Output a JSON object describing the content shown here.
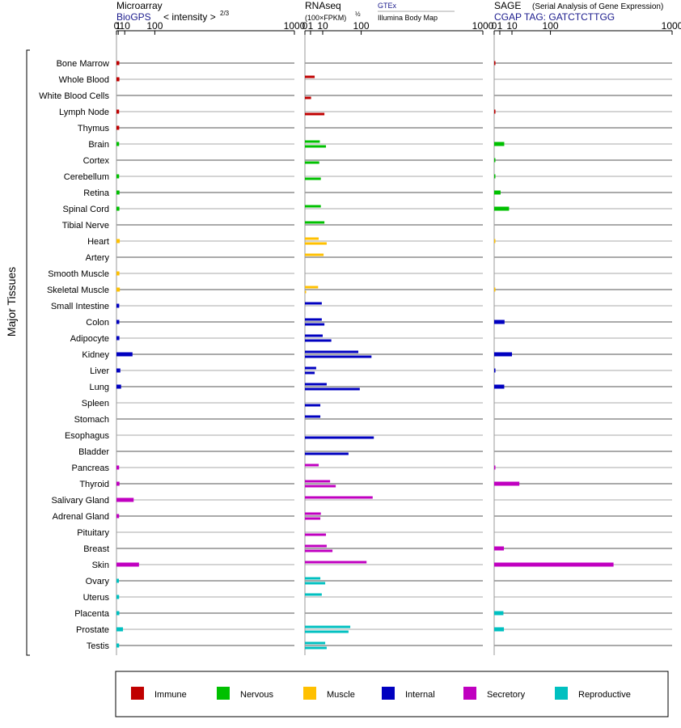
{
  "chart_data": {
    "type": "bar",
    "ylabel": "Major Tissues",
    "panels": {
      "microarray": {
        "title": "Microarray",
        "source": "BioGPS",
        "unit_prefix": "< intensity >",
        "unit_exp": "2/3",
        "ticks": [
          0,
          1,
          10,
          100,
          1000
        ],
        "tick_labels": [
          "0",
          "1",
          "10",
          "100",
          "1000"
        ]
      },
      "rnaseq": {
        "title": "RNAseq",
        "unit_prefix": "(100×FPKM)",
        "unit_exp": "½",
        "source_top": "GTEx",
        "source_bottom": "Illumina Body Map",
        "ticks": [
          0,
          1,
          10,
          100,
          1000
        ],
        "tick_labels": [
          "0",
          "1",
          "10",
          "100",
          "1000"
        ]
      },
      "sage": {
        "title": "SAGE",
        "subtitle": "(Serial Analysis of Gene Expression)",
        "tag": "CGAP TAG: GATCTCTTGG",
        "ticks": [
          0,
          1,
          10,
          100,
          1000
        ],
        "tick_labels": [
          "0",
          "1",
          "10",
          "100",
          "1000"
        ]
      }
    },
    "legend": [
      {
        "name": "Immune",
        "color": "#c00000"
      },
      {
        "name": "Nervous",
        "color": "#00c000"
      },
      {
        "name": "Muscle",
        "color": "#ffc000"
      },
      {
        "name": "Internal",
        "color": "#0000c0"
      },
      {
        "name": "Secretory",
        "color": "#c000c0"
      },
      {
        "name": "Reproductive",
        "color": "#00c0c0"
      }
    ],
    "tissues": [
      {
        "name": "Bone Marrow",
        "group": "Immune",
        "microarray": 2.0,
        "gtex": null,
        "ibm": null,
        "sage": 0.05
      },
      {
        "name": "Whole Blood",
        "group": "Immune",
        "microarray": 2.1,
        "gtex": 3.0,
        "ibm": null,
        "sage": null
      },
      {
        "name": "White Blood Cells",
        "group": "Immune",
        "microarray": null,
        "gtex": null,
        "ibm": 1.2,
        "sage": null
      },
      {
        "name": "Lymph Node",
        "group": "Immune",
        "microarray": 1.8,
        "gtex": null,
        "ibm": 12,
        "sage": 0.05
      },
      {
        "name": "Thymus",
        "group": "Immune",
        "microarray": 1.9,
        "gtex": null,
        "ibm": null,
        "sage": null
      },
      {
        "name": "Brain",
        "group": "Nervous",
        "microarray": 1.8,
        "gtex": 7,
        "ibm": 14,
        "sage": 3.2
      },
      {
        "name": "Cortex",
        "group": "Nervous",
        "microarray": null,
        "gtex": null,
        "ibm": 6.5,
        "sage": 0.02
      },
      {
        "name": "Cerebellum",
        "group": "Nervous",
        "microarray": 1.8,
        "gtex": null,
        "ibm": 8,
        "sage": 0.02
      },
      {
        "name": "Retina",
        "group": "Nervous",
        "microarray": 2.2,
        "gtex": null,
        "ibm": null,
        "sage": 1.3
      },
      {
        "name": "Spinal Cord",
        "group": "Nervous",
        "microarray": 2.1,
        "gtex": 8,
        "ibm": null,
        "sage": 7
      },
      {
        "name": "Tibial Nerve",
        "group": "Nervous",
        "microarray": null,
        "gtex": 12,
        "ibm": null,
        "sage": null
      },
      {
        "name": "Heart",
        "group": "Muscle",
        "microarray": 2.5,
        "gtex": 6,
        "ibm": 15,
        "sage": 0.01
      },
      {
        "name": "Artery",
        "group": "Muscle",
        "microarray": null,
        "gtex": 11,
        "ibm": null,
        "sage": null
      },
      {
        "name": "Smooth Muscle",
        "group": "Muscle",
        "microarray": 2.1,
        "gtex": null,
        "ibm": null,
        "sage": null
      },
      {
        "name": "Skeletal Muscle",
        "group": "Muscle",
        "microarray": 2.6,
        "gtex": 5.5,
        "ibm": 0.02,
        "sage": 0.01
      },
      {
        "name": "Small Intestine",
        "group": "Internal",
        "microarray": 1.9,
        "gtex": 9,
        "ibm": null,
        "sage": null
      },
      {
        "name": "Colon",
        "group": "Internal",
        "microarray": 2.0,
        "gtex": 9,
        "ibm": 12,
        "sage": 3.4
      },
      {
        "name": "Adipocyte",
        "group": "Internal",
        "microarray": 2.1,
        "gtex": 10,
        "ibm": 22,
        "sage": null
      },
      {
        "name": "Kidney",
        "group": "Internal",
        "microarray": 27,
        "gtex": 90,
        "ibm": 140,
        "sage": 10
      },
      {
        "name": "Liver",
        "group": "Internal",
        "microarray": 3.2,
        "gtex": 4.0,
        "ibm": 3.0,
        "sage": 0.05
      },
      {
        "name": "Lung",
        "group": "Internal",
        "microarray": 4.2,
        "gtex": 15,
        "ibm": 95,
        "sage": 3.2
      },
      {
        "name": "Spleen",
        "group": "Internal",
        "microarray": null,
        "gtex": null,
        "ibm": 7.5,
        "sage": null
      },
      {
        "name": "Stomach",
        "group": "Internal",
        "microarray": null,
        "gtex": 7.5,
        "ibm": null,
        "sage": null
      },
      {
        "name": "Esophagus",
        "group": "Internal",
        "microarray": null,
        "gtex": null,
        "ibm": 150,
        "sage": null
      },
      {
        "name": "Bladder",
        "group": "Internal",
        "microarray": null,
        "gtex": null,
        "ibm": 60,
        "sage": null
      },
      {
        "name": "Pancreas",
        "group": "Secretory",
        "microarray": 1.8,
        "gtex": 6,
        "ibm": null,
        "sage": 0.03
      },
      {
        "name": "Thyroid",
        "group": "Secretory",
        "microarray": 2.2,
        "gtex": 20,
        "ibm": 30,
        "sage": 20
      },
      {
        "name": "Salivary Gland",
        "group": "Secretory",
        "microarray": 30,
        "gtex": 145,
        "ibm": null,
        "sage": null
      },
      {
        "name": "Adrenal Gland",
        "group": "Secretory",
        "microarray": 1.8,
        "gtex": 8,
        "ibm": 7.5,
        "sage": null
      },
      {
        "name": "Pituitary",
        "group": "Secretory",
        "microarray": null,
        "gtex": null,
        "ibm": 14,
        "sage": null
      },
      {
        "name": "Breast",
        "group": "Secretory",
        "microarray": null,
        "gtex": 15,
        "ibm": 24,
        "sage": 3.0
      },
      {
        "name": "Skin",
        "group": "Secretory",
        "microarray": 45,
        "gtex": 120,
        "ibm": null,
        "sage": 450
      },
      {
        "name": "Ovary",
        "group": "Reproductive",
        "microarray": 1.6,
        "gtex": 7.5,
        "ibm": 13,
        "sage": null
      },
      {
        "name": "Uterus",
        "group": "Reproductive",
        "microarray": 1.8,
        "gtex": 9,
        "ibm": null,
        "sage": null
      },
      {
        "name": "Placenta",
        "group": "Reproductive",
        "microarray": 2.0,
        "gtex": null,
        "ibm": null,
        "sage": 2.7
      },
      {
        "name": "Prostate",
        "group": "Reproductive",
        "microarray": 7,
        "gtex": 65,
        "ibm": 60,
        "sage": 3.0
      },
      {
        "name": "Testis",
        "group": "Reproductive",
        "microarray": 1.8,
        "gtex": 13,
        "ibm": 15,
        "sage": null
      }
    ]
  }
}
